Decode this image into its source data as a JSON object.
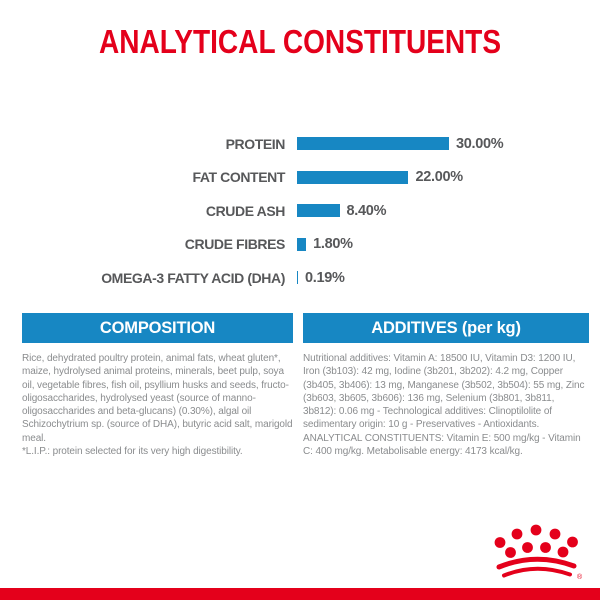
{
  "title": "ANALYTICAL CONSTITUENTS",
  "chart_data": {
    "type": "bar",
    "orientation": "horizontal",
    "title": "ANALYTICAL CONSTITUENTS",
    "categories": [
      "PROTEIN",
      "FAT CONTENT",
      "CRUDE ASH",
      "CRUDE FIBRES",
      "OMEGA-3 FATTY ACID (DHA)"
    ],
    "values": [
      30.0,
      22.0,
      8.4,
      1.8,
      0.19
    ],
    "value_labels": [
      "30.00%",
      "22.00%",
      "8.40%",
      "1.80%",
      "0.19%"
    ],
    "unit": "%",
    "xlim": [
      0,
      30
    ],
    "grid": false,
    "legend": false,
    "bar_color": "#1787C3"
  },
  "composition": {
    "header": "COMPOSITION",
    "body": "Rice, dehydrated poultry protein, animal fats, wheat gluten*, maize, hydrolysed animal proteins, minerals, beet pulp, soya oil, vegetable fibres, fish oil, psyllium husks and seeds, fructo-oligosaccharides, hydrolysed yeast (source of manno-oligosaccharides and beta-glucans) (0.30%), algal oil Schizochytrium sp. (source of DHA), butyric acid salt, marigold meal.",
    "footnote": "*L.I.P.: protein selected for its very high digestibility."
  },
  "additives": {
    "header": "ADDITIVES (per kg)",
    "body": "Nutritional additives: Vitamin A: 18500 IU, Vitamin D3: 1200 IU, Iron (3b103): 42 mg, Iodine (3b201, 3b202): 4.2 mg, Copper (3b405, 3b406): 13 mg, Manganese (3b502, 3b504): 55 mg, Zinc (3b603, 3b605, 3b606): 136 mg, Selenium (3b801, 3b811, 3b812): 0.06 mg - Technological additives: Clinoptilolite of sedimentary origin: 10 g - Preservatives - Antioxidants.",
    "analytical": "ANALYTICAL CONSTITUENTS: Vitamin E: 500 mg/kg - Vitamin C: 400 mg/kg. Metabolisable energy: 4173 kcal/kg."
  },
  "branding": {
    "logo": "royal-canin-crown",
    "registered_mark": "®"
  },
  "colors": {
    "red": "#E4001B",
    "blue": "#1787C3",
    "label_gray": "#57585A",
    "body_gray": "#8A8C8E"
  }
}
